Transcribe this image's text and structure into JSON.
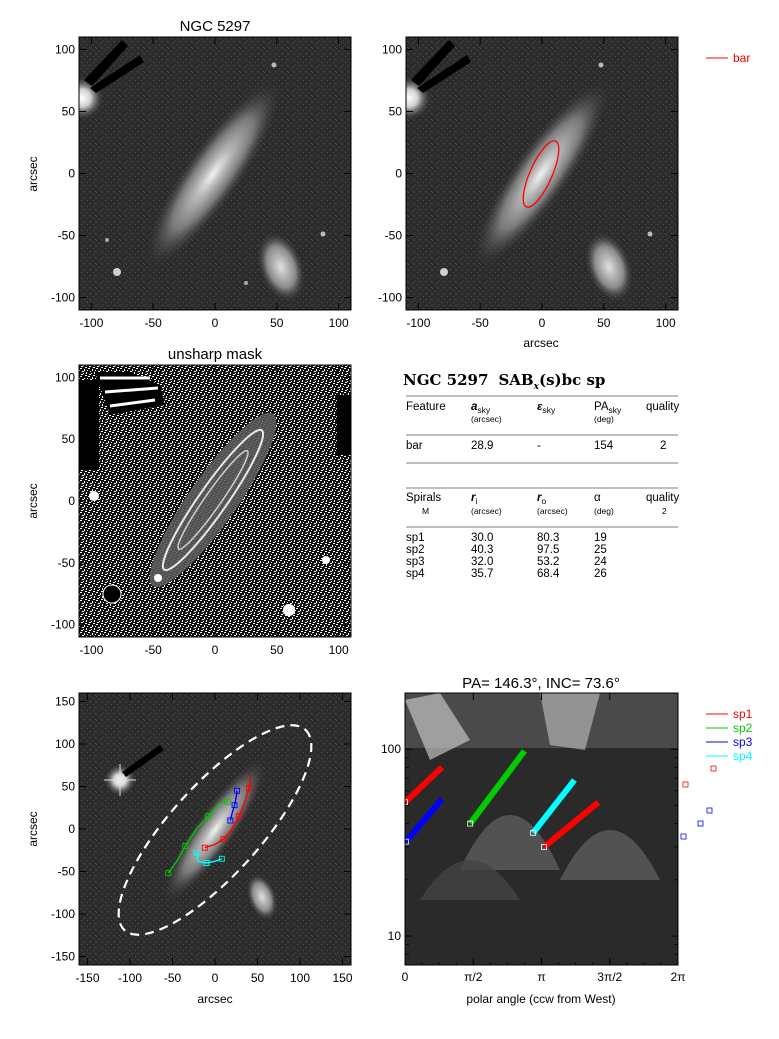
{
  "panels": {
    "p1": {
      "title": "NGC 5297",
      "ylabel": "arcsec",
      "xlabel": ""
    },
    "p2": {
      "title": "",
      "ylabel": "",
      "xlabel": "arcsec"
    },
    "p3": {
      "title": "unsharp mask",
      "ylabel": "arcsec",
      "xlabel": ""
    },
    "p5": {
      "title": "",
      "ylabel": "arcsec",
      "xlabel": "arcsec"
    },
    "p6": {
      "title": "PA= 146.3°, INC=  73.6°",
      "ylabel": "",
      "xlabel": "polar angle (ccw from West)"
    }
  },
  "ticks": {
    "img_small": [
      "-100",
      "-50",
      "0",
      "50",
      "100"
    ],
    "img_large": [
      "-150",
      "-100",
      "-50",
      "0",
      "50",
      "100",
      "150"
    ],
    "polar_x": [
      "0",
      "π/2",
      "π",
      "3π/2",
      "2π"
    ],
    "polar_y": [
      "10",
      "100"
    ]
  },
  "legend_bar": {
    "label": "bar",
    "color": "#ff0000"
  },
  "table": {
    "heading": {
      "name": "NGC 5297",
      "type": "SAB",
      "type_sub": "x",
      "type_rest": "(s)bc sp"
    },
    "feature_header": {
      "c1": "Feature",
      "c2": "a",
      "c2_sub": "sky",
      "c2_unit": "(arcsec)",
      "c3": "ε",
      "c3_sub": "sky",
      "c4": "PA",
      "c4_sub": "sky",
      "c4_unit": "(deg)",
      "c5": "quality"
    },
    "feature_row": {
      "name": "bar",
      "a": "28.9",
      "e": "-",
      "pa": "154",
      "q": "2"
    },
    "spiral_header": {
      "c1": "Spirals",
      "c1_sub": "M",
      "c2": "r",
      "c2_sub": "i",
      "c2_unit": "(arcsec)",
      "c3": "r",
      "c3_sub": "o",
      "c3_unit": "(arcsec)",
      "c4": "α",
      "c4_unit": "(deg)",
      "c5": "quality",
      "c5_val": "2"
    },
    "spiral_rows": [
      {
        "name": "sp1",
        "ri": "30.0",
        "ro": "80.3",
        "alpha": "19"
      },
      {
        "name": "sp2",
        "ri": "40.3",
        "ro": "97.5",
        "alpha": "25"
      },
      {
        "name": "sp3",
        "ri": "32.0",
        "ro": "53.2",
        "alpha": "24"
      },
      {
        "name": "sp4",
        "ri": "35.7",
        "ro": "68.4",
        "alpha": "26"
      }
    ]
  },
  "chart_data": [
    {
      "type": "image",
      "title": "NGC 5297",
      "ylabel": "arcsec",
      "xlim": [
        -110,
        110
      ],
      "ylim": [
        -110,
        110
      ]
    },
    {
      "type": "image",
      "xlabel": "arcsec",
      "xlim": [
        -110,
        110
      ],
      "ylim": [
        -110,
        110
      ],
      "overlays": [
        {
          "name": "bar",
          "shape": "ellipse",
          "semi_major_arcsec": 28.9,
          "pa_deg": 154,
          "color": "#ff0000"
        }
      ]
    },
    {
      "type": "image",
      "title": "unsharp mask",
      "ylabel": "arcsec",
      "xlim": [
        -110,
        110
      ],
      "ylim": [
        -110,
        110
      ]
    },
    {
      "type": "image",
      "xlabel": "arcsec",
      "ylabel": "arcsec",
      "xlim": [
        -160,
        160
      ],
      "ylim": [
        -160,
        160
      ],
      "overlays": [
        {
          "name": "disk",
          "shape": "dashed-ellipse",
          "color": "#ffffff"
        },
        {
          "name": "sp1",
          "color": "#ff0000",
          "points": [
            [
              -12,
              -22
            ],
            [
              0,
              -18
            ],
            [
              10,
              -12
            ],
            [
              20,
              0
            ],
            [
              28,
              15
            ],
            [
              35,
              32
            ],
            [
              40,
              48
            ],
            [
              42,
              62
            ]
          ]
        },
        {
          "name": "sp2",
          "color": "#00cc00",
          "points": [
            [
              -55,
              -52
            ],
            [
              -45,
              -38
            ],
            [
              -35,
              -20
            ],
            [
              -22,
              0
            ],
            [
              -8,
              15
            ],
            [
              5,
              30
            ],
            [
              15,
              32
            ]
          ]
        },
        {
          "name": "sp3",
          "color": "#0000ff",
          "points": [
            [
              18,
              10
            ],
            [
              20,
              18
            ],
            [
              23,
              28
            ],
            [
              25,
              38
            ],
            [
              26,
              45
            ]
          ]
        },
        {
          "name": "sp4",
          "color": "#00ffff",
          "points": [
            [
              -22,
              -28
            ],
            [
              -20,
              -38
            ],
            [
              -10,
              -40
            ],
            [
              0,
              -38
            ],
            [
              8,
              -35
            ]
          ]
        }
      ]
    },
    {
      "type": "line",
      "title": "PA= 146.3°, INC=  73.6°",
      "xlabel": "polar angle (ccw from West)",
      "xlim": [
        0,
        6.283
      ],
      "ylim": [
        7,
        200
      ],
      "y_scale": "log",
      "series": [
        {
          "name": "sp1",
          "color": "#ff0000",
          "segments": [
            [
              [
                0,
                52
              ],
              [
                0.85,
                80
              ]
            ],
            [
              [
                3.2,
                30
              ],
              [
                4.45,
                52
              ]
            ]
          ]
        },
        {
          "name": "sp2",
          "color": "#00cc00",
          "segments": [
            [
              [
                1.5,
                40
              ],
              [
                2.75,
                98
              ]
            ]
          ]
        },
        {
          "name": "sp3",
          "color": "#0000ff",
          "segments": [
            [
              [
                0.02,
                32
              ],
              [
                0.85,
                54
              ]
            ]
          ]
        },
        {
          "name": "sp4",
          "color": "#00ffff",
          "segments": [
            [
              [
                2.95,
                35.7
              ],
              [
                3.9,
                68.4
              ]
            ]
          ]
        }
      ]
    }
  ]
}
